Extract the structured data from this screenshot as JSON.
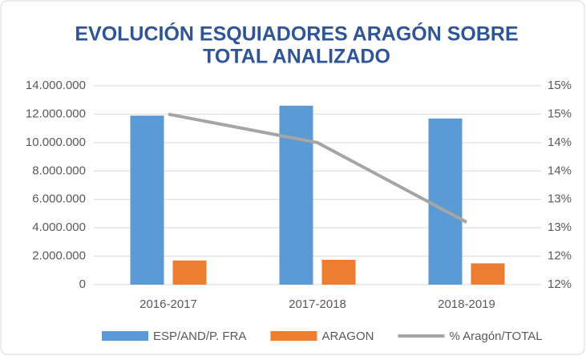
{
  "chart_data": {
    "type": "bar_line",
    "title": [
      "EVOLUCIÓN ESQUIADORES ARAGÓN SOBRE",
      "TOTAL ANALIZADO"
    ],
    "categories": [
      "2016-2017",
      "2017-2018",
      "2018-2019"
    ],
    "series": [
      {
        "name": "ESP/AND/P. FRA",
        "color": "#5b9bd5",
        "type": "bar",
        "values": [
          11900000,
          12600000,
          11700000
        ]
      },
      {
        "name": "ARAGON",
        "color": "#ed7d31",
        "type": "bar",
        "values": [
          1700000,
          1750000,
          1500000
        ]
      },
      {
        "name": "% Aragón/TOTAL",
        "color": "#a5a5a5",
        "type": "line",
        "axis": "y2",
        "values": [
          14.5,
          14.0,
          12.6
        ]
      }
    ],
    "ylim": [
      0,
      14000000
    ],
    "yticks": [
      0,
      {
        "value": 2000000,
        "label": "2.000.000"
      },
      {
        "value": 4000000,
        "label": "4.000.000"
      },
      {
        "value": 6000000,
        "label": "6.000.000"
      },
      {
        "value": 8000000,
        "label": "8.000.000"
      },
      {
        "value": 10000000,
        "label": "10.000.000"
      },
      {
        "value": 12000000,
        "label": "12.000.000"
      },
      {
        "value": 14000000,
        "label": "14.000.000"
      }
    ],
    "y2lim": [
      11.5,
      15.0
    ],
    "y2ticks": [
      {
        "value": 11.5,
        "label": "12%"
      },
      {
        "value": 12.0,
        "label": "12%"
      },
      {
        "value": 12.5,
        "label": "13%"
      },
      {
        "value": 13.0,
        "label": "13%"
      },
      {
        "value": 13.5,
        "label": "14%"
      },
      {
        "value": 14.0,
        "label": "14%"
      },
      {
        "value": 14.5,
        "label": "15%"
      },
      {
        "value": 15.0,
        "label": "15%"
      }
    ],
    "grid": true
  }
}
